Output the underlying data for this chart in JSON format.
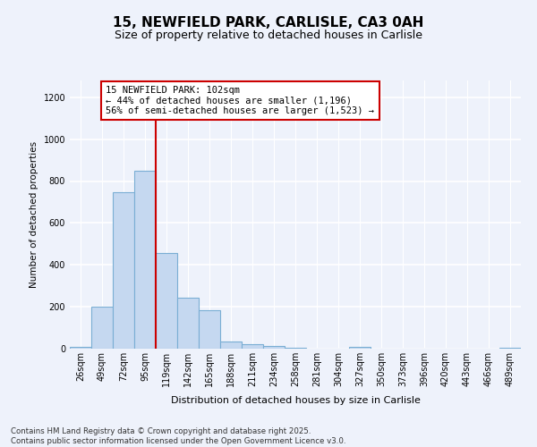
{
  "title1": "15, NEWFIELD PARK, CARLISLE, CA3 0AH",
  "title2": "Size of property relative to detached houses in Carlisle",
  "xlabel": "Distribution of detached houses by size in Carlisle",
  "ylabel": "Number of detached properties",
  "categories": [
    "26sqm",
    "49sqm",
    "72sqm",
    "95sqm",
    "119sqm",
    "142sqm",
    "165sqm",
    "188sqm",
    "211sqm",
    "234sqm",
    "258sqm",
    "281sqm",
    "304sqm",
    "327sqm",
    "350sqm",
    "373sqm",
    "396sqm",
    "420sqm",
    "443sqm",
    "466sqm",
    "489sqm"
  ],
  "values": [
    10,
    200,
    745,
    848,
    455,
    245,
    183,
    35,
    20,
    12,
    5,
    0,
    0,
    8,
    0,
    0,
    0,
    0,
    0,
    0,
    5
  ],
  "bar_color": "#c5d8f0",
  "bar_edge_color": "#7aaed4",
  "red_line_color": "#cc0000",
  "red_line_x": 3.5,
  "annotation_line1": "15 NEWFIELD PARK: 102sqm",
  "annotation_line2": "← 44% of detached houses are smaller (1,196)",
  "annotation_line3": "56% of semi-detached houses are larger (1,523) →",
  "annotation_box_color": "#ffffff",
  "annotation_box_edge": "#cc0000",
  "ylim": [
    0,
    1280
  ],
  "yticks": [
    0,
    200,
    400,
    600,
    800,
    1000,
    1200
  ],
  "background_color": "#eef2fb",
  "grid_color": "#ffffff",
  "footer1": "Contains HM Land Registry data © Crown copyright and database right 2025.",
  "footer2": "Contains public sector information licensed under the Open Government Licence v3.0."
}
